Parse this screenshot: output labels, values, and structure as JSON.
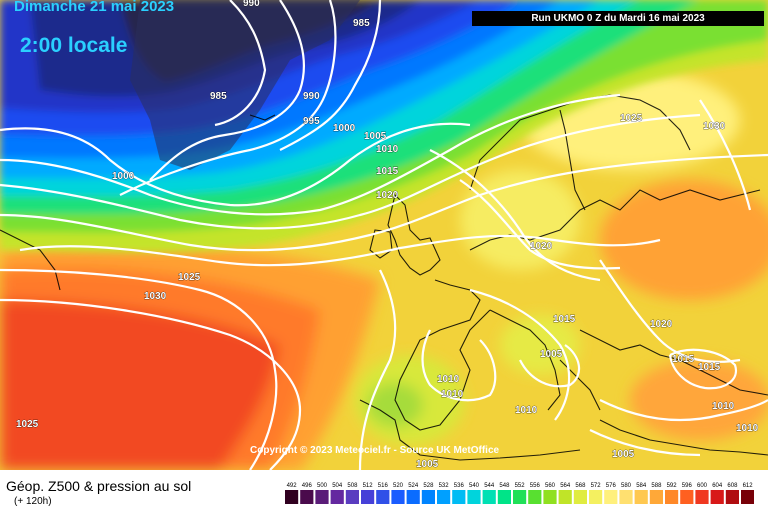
{
  "header": {
    "date": "Dimanche 21 mai 2023",
    "local_time": "2:00 locale",
    "run_info": "Run UKMO 0 Z du Mardi 16 mai 2023"
  },
  "copyright": "Copyright © 2023 Meteociel.fr - Source UK MetOffice",
  "legend": {
    "title": "Géop. Z500 & pression au sol",
    "subtitle": "(+ 120h)",
    "scale_values": [
      "492",
      "496",
      "500",
      "504",
      "508",
      "512",
      "516",
      "520",
      "524",
      "528",
      "532",
      "536",
      "540",
      "544",
      "548",
      "552",
      "556",
      "560",
      "564",
      "568",
      "572",
      "576",
      "580",
      "584",
      "588",
      "592",
      "596",
      "600",
      "604",
      "608",
      "612"
    ],
    "scale_colors": [
      "#300020",
      "#4a0a4c",
      "#5a1c78",
      "#6428a0",
      "#5a3cc0",
      "#4640d8",
      "#3050e8",
      "#1a5cff",
      "#0a6cff",
      "#0084ff",
      "#00a0ff",
      "#00bcf4",
      "#00d4dc",
      "#00e0b4",
      "#00e488",
      "#20e058",
      "#58e030",
      "#90e020",
      "#c0e428",
      "#e0ec40",
      "#f4f060",
      "#fff07c",
      "#ffe070",
      "#ffc850",
      "#ffa838",
      "#ff8828",
      "#ff6020",
      "#f03820",
      "#d81818",
      "#b00c10",
      "#780008"
    ]
  },
  "isobar_labels": [
    "990",
    "985",
    "985",
    "990",
    "995",
    "1000",
    "1005",
    "1010",
    "1015",
    "1020",
    "1000",
    "1025",
    "1030",
    "1020",
    "1025",
    "1030",
    "1015",
    "1020",
    "1005",
    "1010",
    "1010",
    "1010",
    "1015",
    "1015",
    "1010",
    "1010",
    "1005",
    "1005",
    "1025"
  ]
}
